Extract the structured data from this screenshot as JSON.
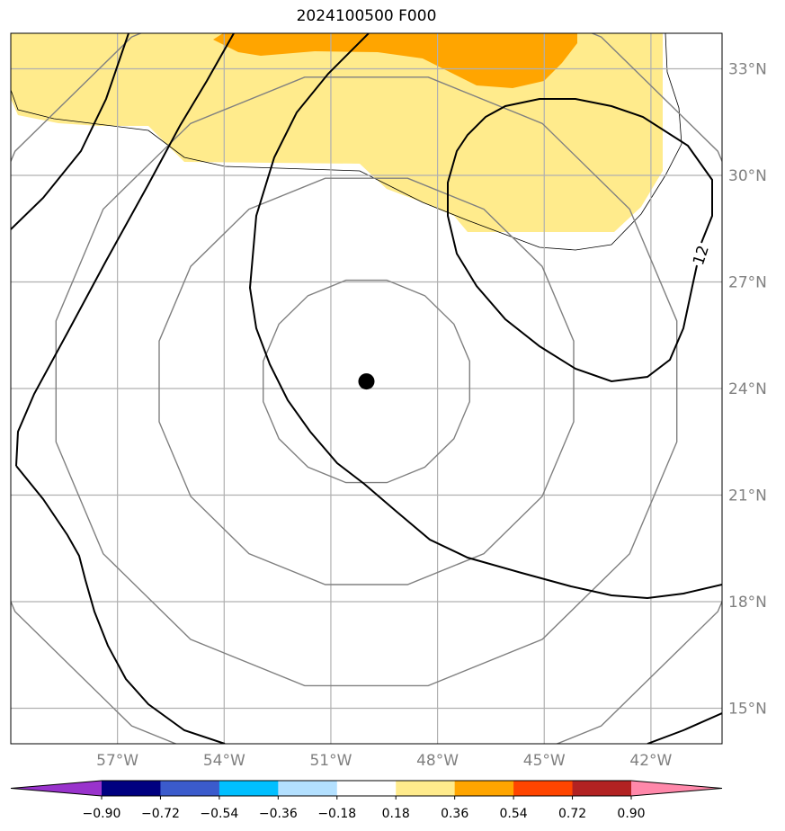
{
  "title": "2024100500 F000",
  "map": {
    "lon_range": [
      -60,
      -40
    ],
    "lat_range": [
      14,
      34
    ],
    "lon_ticks": [
      {
        "value": -57,
        "label": "57°W"
      },
      {
        "value": -54,
        "label": "54°W"
      },
      {
        "value": -51,
        "label": "51°W"
      },
      {
        "value": -48,
        "label": "48°W"
      },
      {
        "value": -45,
        "label": "45°W"
      },
      {
        "value": -42,
        "label": "42°W"
      }
    ],
    "lat_ticks": [
      {
        "value": 33,
        "label": "33°N"
      },
      {
        "value": 30,
        "label": "30°N"
      },
      {
        "value": 27,
        "label": "27°N"
      },
      {
        "value": 24,
        "label": "24°N"
      },
      {
        "value": 21,
        "label": "21°N"
      },
      {
        "value": 18,
        "label": "18°N"
      },
      {
        "value": 15,
        "label": "15°N"
      }
    ],
    "storm_center": {
      "lon": -50,
      "lat": 24.2
    },
    "contour_label": "12",
    "colors": {
      "light_fill": "#ffeb8c",
      "dark_fill": "#ffa500",
      "grid": "#b0b0b0",
      "rings": "#808080",
      "contours": "#000000"
    }
  },
  "colorbar": {
    "colors": [
      "#9933cc",
      "#000080",
      "#3b5bcc",
      "#00bfff",
      "#b3e0ff",
      "#ffffff",
      "#ffeb8c",
      "#ffa500",
      "#ff4500",
      "#b22222",
      "#ff88aa"
    ],
    "labels": [
      "−0.90",
      "−0.72",
      "−0.54",
      "−0.36",
      "−0.18",
      "0.18",
      "0.36",
      "0.54",
      "0.72",
      "0.90"
    ]
  }
}
